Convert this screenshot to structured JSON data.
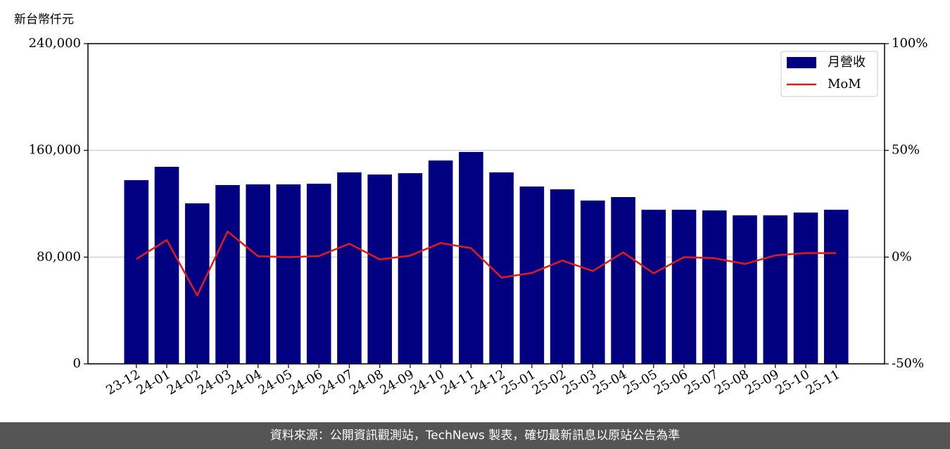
{
  "chart_data": {
    "type": "bar_line",
    "y_label": "新台幣仟元",
    "categories": [
      "23-12",
      "24-01",
      "24-02",
      "24-03",
      "24-04",
      "24-05",
      "24-06",
      "24-07",
      "24-08",
      "24-09",
      "24-10",
      "24-11",
      "24-12",
      "25-01",
      "25-02",
      "25-03",
      "25-04",
      "25-05",
      "25-06",
      "25-07",
      "25-08",
      "25-09",
      "25-10",
      "25-11"
    ],
    "series": [
      {
        "name": "月營收",
        "type": "bar",
        "color": "#000080",
        "values": [
          137700,
          147700,
          120300,
          134000,
          134500,
          134500,
          135000,
          143500,
          141900,
          142900,
          152400,
          158800,
          143500,
          132900,
          130800,
          122400,
          125000,
          115500,
          115500,
          115000,
          111300,
          111300,
          113400,
          115500
        ]
      },
      {
        "name": "MoM",
        "type": "line",
        "axis": "y2",
        "color": "#e31a1c",
        "values": [
          -0.9,
          8.0,
          -18.0,
          12.0,
          0.4,
          0.0,
          0.5,
          6.3,
          -1.1,
          0.7,
          6.6,
          4.2,
          -9.6,
          -7.4,
          -1.6,
          -6.5,
          2.2,
          -7.6,
          0.0,
          -0.5,
          -3.2,
          0.8,
          1.9,
          1.9
        ]
      }
    ],
    "ylim": [
      0,
      240000
    ],
    "yticks": [
      0,
      {
        "value": 80000,
        "label": "80,000"
      },
      {
        "value": 160000,
        "label": "160,000"
      },
      {
        "value": 240000,
        "label": "240,000"
      }
    ],
    "y2lim": [
      -50,
      100
    ],
    "y2ticks": [
      {
        "value": -50,
        "label": "-50%"
      },
      {
        "value": 0,
        "label": "0%"
      },
      {
        "value": 50,
        "label": "50%"
      },
      {
        "value": 100,
        "label": "100%"
      }
    ],
    "grid": true,
    "legend": "upper right"
  },
  "footer": "資料來源：公開資訊觀測站，TechNews 製表，確切最新訊息以原站公告為準"
}
